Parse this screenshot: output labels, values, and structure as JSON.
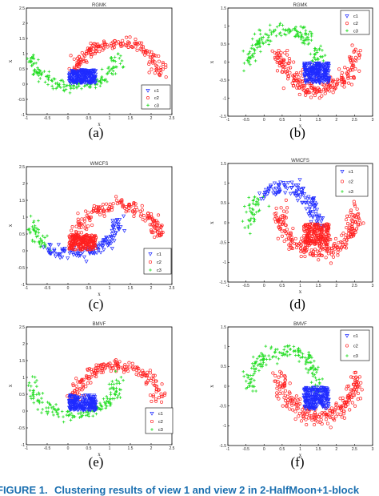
{
  "caption": {
    "label": "FIGURE 1.",
    "text": "Clustering results of view 1 and view 2 in 2-HalfMoon+1-block"
  },
  "colors": {
    "c1": "#1f2bff",
    "c2": "#ff2020",
    "c3": "#22dd22"
  },
  "chart_data": [
    {
      "type": "scatter",
      "sublabel": "(a)",
      "title": "RGMK",
      "xlabel": "x",
      "ylabel": "x",
      "xlim": [
        -1,
        2.5
      ],
      "ylim": [
        -1,
        2.5
      ],
      "xticks": [
        "-1",
        "-0.5",
        "0",
        "0.5",
        "1",
        "1.5",
        "2",
        "2.5"
      ],
      "yticks": [
        "-1",
        "-0.5",
        "0",
        "0.5",
        "1",
        "1.5",
        "2",
        "2.5"
      ],
      "legend": [
        "c1",
        "c2",
        "c3"
      ],
      "legend_position": "right-middle",
      "clusters": {
        "blob": "c1",
        "upper_moon": "c2",
        "lower_moon": "c3"
      }
    },
    {
      "type": "scatter",
      "sublabel": "(b)",
      "title": "RGMK",
      "xlabel": "x",
      "ylabel": "x",
      "xlim": [
        -1,
        3
      ],
      "ylim": [
        -1.5,
        1.5
      ],
      "xticks": [
        "-1",
        "-0.5",
        "0",
        "0.5",
        "1",
        "1.5",
        "2",
        "2.5",
        "3"
      ],
      "yticks": [
        "-1.5",
        "-1",
        "-0.5",
        "0",
        "0.5",
        "1",
        "1.5"
      ],
      "legend": [
        "c1",
        "c2",
        "c3"
      ],
      "legend_position": "top-right",
      "clusters": {
        "blob": "c1",
        "upper_moon": "c3",
        "lower_moon": "c2"
      }
    },
    {
      "type": "scatter",
      "sublabel": "(c)",
      "title": "WMCFS",
      "xlabel": "x",
      "ylabel": "x",
      "xlim": [
        -1,
        2.5
      ],
      "ylim": [
        -1,
        2.5
      ],
      "xticks": [
        "-1",
        "-0.5",
        "0",
        "0.5",
        "1",
        "1.5",
        "2",
        "2.5"
      ],
      "yticks": [
        "-1",
        "-0.5",
        "0",
        "0.5",
        "1",
        "1.5",
        "2",
        "2.5"
      ],
      "legend": [
        "c1",
        "c2",
        "c3"
      ],
      "legend_position": "right-middle",
      "clusters": {
        "blob": "c2",
        "upper_moon": "c2",
        "lower_moon": "c1",
        "lower_moon_tail": "c3"
      }
    },
    {
      "type": "scatter",
      "sublabel": "(d)",
      "title": "WMCFS",
      "xlabel": "x",
      "ylabel": "x",
      "xlim": [
        -1,
        3
      ],
      "ylim": [
        -1.5,
        1.5
      ],
      "xticks": [
        "-1",
        "-0.5",
        "0",
        "0.5",
        "1",
        "1.5",
        "2",
        "2.5",
        "3"
      ],
      "yticks": [
        "-1.5",
        "-1",
        "-0.5",
        "0",
        "0.5",
        "1",
        "1.5"
      ],
      "legend": [
        "c1",
        "c2",
        "c3"
      ],
      "legend_position": "top-right",
      "clusters": {
        "blob": "c2",
        "upper_moon": "c1",
        "upper_moon_tail": "c3",
        "lower_moon": "c2"
      }
    },
    {
      "type": "scatter",
      "sublabel": "(e)",
      "title": "BMVF",
      "xlabel": "x",
      "ylabel": "x",
      "xlim": [
        -1,
        2.5
      ],
      "ylim": [
        -1,
        2.5
      ],
      "xticks": [
        "-1",
        "-0.5",
        "0",
        "0.5",
        "1",
        "1.5",
        "2",
        "2.5"
      ],
      "yticks": [
        "-1",
        "-0.5",
        "0",
        "0.5",
        "1",
        "1.5",
        "2",
        "2.5"
      ],
      "legend": [
        "c1",
        "c2",
        "c3"
      ],
      "legend_position": "right-middle",
      "clusters": {
        "blob": "c1",
        "upper_moon": "c2",
        "lower_moon": "c3"
      }
    },
    {
      "type": "scatter",
      "sublabel": "(f)",
      "title": "BMVF",
      "xlabel": "x",
      "ylabel": "x",
      "xlim": [
        -1,
        3
      ],
      "ylim": [
        -1.5,
        1.5
      ],
      "xticks": [
        "-1",
        "-0.5",
        "0",
        "0.5",
        "1",
        "1.5",
        "2",
        "2.5",
        "3"
      ],
      "yticks": [
        "-1.5",
        "-1",
        "-0.5",
        "0",
        "0.5",
        "1",
        "1.5"
      ],
      "legend": [
        "c1",
        "c2",
        "c3"
      ],
      "legend_position": "top-right",
      "clusters": {
        "blob": "c1",
        "upper_moon": "c3",
        "lower_moon": "c2"
      }
    }
  ]
}
